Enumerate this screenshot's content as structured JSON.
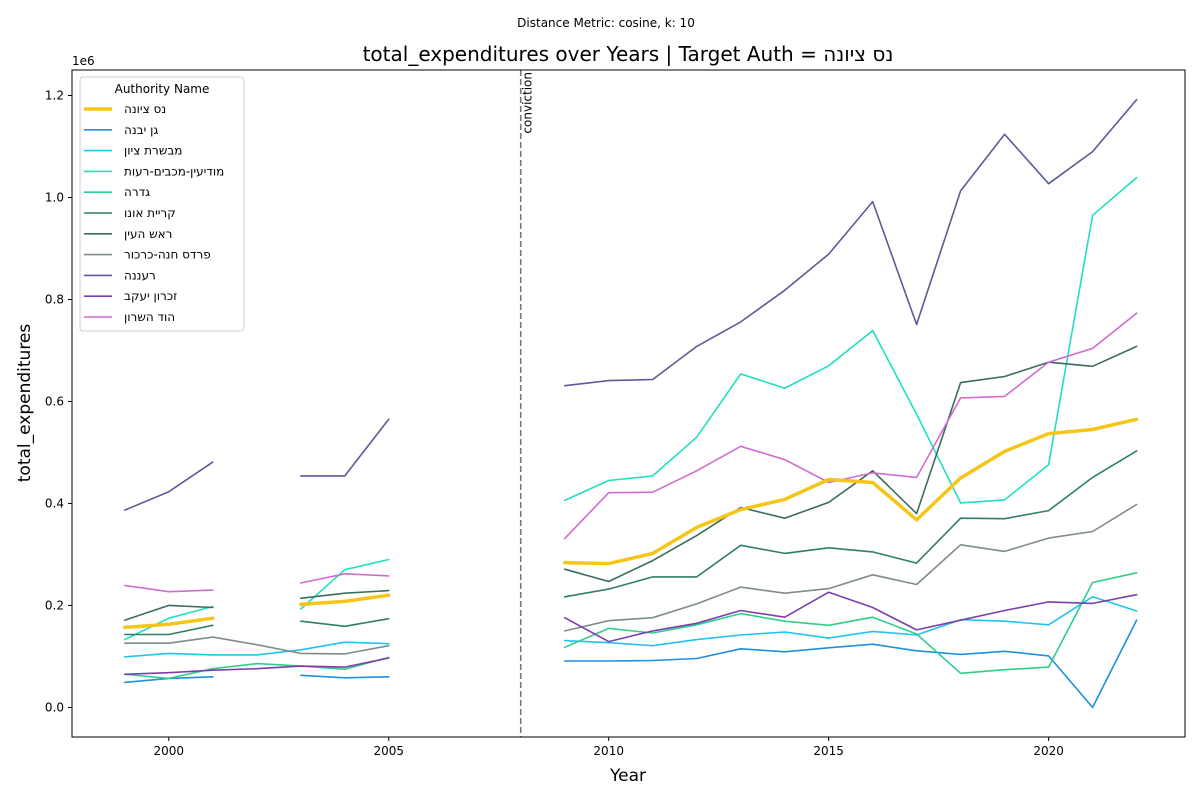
{
  "chart_data": {
    "type": "line",
    "suptitle": "Distance Metric: cosine, k: 10",
    "title": "total_expenditures over Years | Target Auth = נס ציונה",
    "xlabel": "Year",
    "ylabel": "total_expenditures",
    "offset_text": "1e6",
    "xlim": [
      1997.8,
      2023.1
    ],
    "ylim": [
      -58000,
      1250000
    ],
    "xticks": [
      2000,
      2005,
      2010,
      2015,
      2020
    ],
    "yticks": [
      0,
      200000,
      400000,
      600000,
      800000,
      1000000,
      1200000
    ],
    "ytick_labels": [
      "0.0",
      "0.2",
      "0.4",
      "0.6",
      "0.8",
      "1.0",
      "1.2"
    ],
    "vline": {
      "x": 2008,
      "label": "conviction",
      "color": "#777777"
    },
    "legend": {
      "title": "Authority Name",
      "position": "top-left"
    },
    "series": [
      {
        "name": "נס ציונה",
        "color": "#f5c518",
        "target": true,
        "points": [
          [
            1999,
            157000
          ],
          [
            2000,
            163000
          ],
          [
            2001,
            175000
          ],
          [
            2003,
            202000
          ],
          [
            2004,
            208000
          ],
          [
            2005,
            220000
          ],
          [
            2009,
            284000
          ],
          [
            2010,
            282000
          ],
          [
            2011,
            302000
          ],
          [
            2012,
            353000
          ],
          [
            2013,
            388000
          ],
          [
            2014,
            408000
          ],
          [
            2015,
            447000
          ],
          [
            2016,
            441000
          ],
          [
            2017,
            368000
          ],
          [
            2018,
            450000
          ],
          [
            2019,
            502000
          ],
          [
            2020,
            537000
          ],
          [
            2021,
            545000
          ],
          [
            2022,
            565000
          ]
        ]
      },
      {
        "name": "גן יבנה",
        "color": "#1f8fe0",
        "points": [
          [
            1999,
            49000
          ],
          [
            2000,
            57000
          ],
          [
            2001,
            60000
          ],
          [
            2003,
            63000
          ],
          [
            2004,
            58000
          ],
          [
            2005,
            60000
          ],
          [
            2009,
            91000
          ],
          [
            2010,
            91000
          ],
          [
            2011,
            92000
          ],
          [
            2012,
            96000
          ],
          [
            2013,
            115000
          ],
          [
            2014,
            109000
          ],
          [
            2015,
            117000
          ],
          [
            2016,
            124000
          ],
          [
            2017,
            111000
          ],
          [
            2018,
            104000
          ],
          [
            2019,
            110000
          ],
          [
            2020,
            101000
          ],
          [
            2021,
            0
          ],
          [
            2022,
            171000
          ]
        ]
      },
      {
        "name": "מבשרת ציון",
        "color": "#22c3ef",
        "points": [
          [
            1999,
            99000
          ],
          [
            2000,
            106000
          ],
          [
            2001,
            103000
          ],
          [
            2002,
            103000
          ],
          [
            2003,
            113000
          ],
          [
            2004,
            128000
          ],
          [
            2005,
            125000
          ],
          [
            2009,
            131000
          ],
          [
            2010,
            127000
          ],
          [
            2011,
            121000
          ],
          [
            2012,
            133000
          ],
          [
            2013,
            142000
          ],
          [
            2014,
            148000
          ],
          [
            2015,
            136000
          ],
          [
            2016,
            149000
          ],
          [
            2017,
            142000
          ],
          [
            2018,
            172000
          ],
          [
            2019,
            169000
          ],
          [
            2020,
            162000
          ],
          [
            2021,
            217000
          ],
          [
            2022,
            189000
          ]
        ]
      },
      {
        "name": "מודיעין-מכבים-רעות",
        "color": "#1fe0c0",
        "points": [
          [
            1999,
            133000
          ],
          [
            2000,
            175000
          ],
          [
            2001,
            198000
          ],
          [
            2003,
            193000
          ],
          [
            2004,
            270000
          ],
          [
            2005,
            290000
          ],
          [
            2009,
            406000
          ],
          [
            2010,
            445000
          ],
          [
            2011,
            454000
          ],
          [
            2012,
            530000
          ],
          [
            2013,
            654000
          ],
          [
            2014,
            626000
          ],
          [
            2015,
            670000
          ],
          [
            2016,
            739000
          ],
          [
            2017,
            575000
          ],
          [
            2018,
            401000
          ],
          [
            2019,
            407000
          ],
          [
            2020,
            476000
          ],
          [
            2021,
            965000
          ],
          [
            2022,
            1039000
          ]
        ]
      },
      {
        "name": "גדרה",
        "color": "#2ecf8a",
        "points": [
          [
            1999,
            65000
          ],
          [
            2000,
            57000
          ],
          [
            2001,
            76000
          ],
          [
            2002,
            86000
          ],
          [
            2003,
            81000
          ],
          [
            2004,
            75000
          ],
          [
            2005,
            98000
          ],
          [
            2009,
            118000
          ],
          [
            2010,
            155000
          ],
          [
            2011,
            146000
          ],
          [
            2012,
            162000
          ],
          [
            2013,
            184000
          ],
          [
            2014,
            169000
          ],
          [
            2015,
            161000
          ],
          [
            2016,
            177000
          ],
          [
            2017,
            144000
          ],
          [
            2018,
            67000
          ],
          [
            2019,
            74000
          ],
          [
            2020,
            79000
          ],
          [
            2021,
            245000
          ],
          [
            2022,
            264000
          ]
        ]
      },
      {
        "name": "קריית אונו",
        "color": "#2f7f68",
        "points": [
          [
            1999,
            143000
          ],
          [
            2000,
            143000
          ],
          [
            2001,
            161000
          ],
          [
            2003,
            169000
          ],
          [
            2004,
            159000
          ],
          [
            2005,
            174000
          ],
          [
            2009,
            217000
          ],
          [
            2010,
            232000
          ],
          [
            2011,
            256000
          ],
          [
            2012,
            256000
          ],
          [
            2013,
            318000
          ],
          [
            2014,
            302000
          ],
          [
            2015,
            313000
          ],
          [
            2016,
            305000
          ],
          [
            2017,
            283000
          ],
          [
            2018,
            371000
          ],
          [
            2019,
            370000
          ],
          [
            2020,
            386000
          ],
          [
            2021,
            451000
          ],
          [
            2022,
            503000
          ]
        ]
      },
      {
        "name": "ראש העין",
        "color": "#3d6c5a",
        "points": [
          [
            1999,
            171000
          ],
          [
            2000,
            200000
          ],
          [
            2001,
            196000
          ],
          [
            2003,
            214000
          ],
          [
            2004,
            224000
          ],
          [
            2005,
            229000
          ],
          [
            2009,
            271000
          ],
          [
            2010,
            247000
          ],
          [
            2011,
            288000
          ],
          [
            2012,
            337000
          ],
          [
            2013,
            392000
          ],
          [
            2014,
            371000
          ],
          [
            2015,
            402000
          ],
          [
            2016,
            464000
          ],
          [
            2017,
            380000
          ],
          [
            2018,
            637000
          ],
          [
            2019,
            649000
          ],
          [
            2020,
            677000
          ],
          [
            2021,
            669000
          ],
          [
            2022,
            708000
          ]
        ]
      },
      {
        "name": "פרדס חנה-כרכור",
        "color": "#7f8c88",
        "points": [
          [
            1999,
            126000
          ],
          [
            2000,
            126000
          ],
          [
            2001,
            138000
          ],
          [
            2002,
            123000
          ],
          [
            2003,
            106000
          ],
          [
            2004,
            105000
          ],
          [
            2005,
            121000
          ],
          [
            2009,
            150000
          ],
          [
            2010,
            170000
          ],
          [
            2011,
            176000
          ],
          [
            2012,
            203000
          ],
          [
            2013,
            236000
          ],
          [
            2014,
            224000
          ],
          [
            2015,
            233000
          ],
          [
            2016,
            260000
          ],
          [
            2017,
            241000
          ],
          [
            2018,
            319000
          ],
          [
            2019,
            306000
          ],
          [
            2020,
            332000
          ],
          [
            2021,
            345000
          ],
          [
            2022,
            398000
          ]
        ]
      },
      {
        "name": "רעננה",
        "color": "#5b5b9a",
        "points": [
          [
            1999,
            387000
          ],
          [
            2000,
            423000
          ],
          [
            2001,
            481000
          ],
          [
            2003,
            454000
          ],
          [
            2004,
            454000
          ],
          [
            2005,
            565000
          ],
          [
            2009,
            631000
          ],
          [
            2010,
            641000
          ],
          [
            2011,
            643000
          ],
          [
            2012,
            708000
          ],
          [
            2013,
            756000
          ],
          [
            2014,
            818000
          ],
          [
            2015,
            889000
          ],
          [
            2016,
            992000
          ],
          [
            2017,
            751000
          ],
          [
            2018,
            1013000
          ],
          [
            2019,
            1124000
          ],
          [
            2020,
            1027000
          ],
          [
            2021,
            1090000
          ],
          [
            2022,
            1192000
          ]
        ]
      },
      {
        "name": "זכרון יעקב",
        "color": "#7b3fb0",
        "points": [
          [
            1999,
            65000
          ],
          [
            2000,
            68000
          ],
          [
            2001,
            73000
          ],
          [
            2002,
            76000
          ],
          [
            2003,
            81000
          ],
          [
            2004,
            79000
          ],
          [
            2005,
            97000
          ],
          [
            2009,
            176000
          ],
          [
            2010,
            129000
          ],
          [
            2011,
            150000
          ],
          [
            2012,
            165000
          ],
          [
            2013,
            190000
          ],
          [
            2014,
            177000
          ],
          [
            2015,
            226000
          ],
          [
            2016,
            196000
          ],
          [
            2017,
            152000
          ],
          [
            2018,
            171000
          ],
          [
            2019,
            190000
          ],
          [
            2020,
            207000
          ],
          [
            2021,
            204000
          ],
          [
            2022,
            221000
          ]
        ]
      },
      {
        "name": "הוד השרון",
        "color": "#d06cd0",
        "points": [
          [
            1999,
            239000
          ],
          [
            2000,
            227000
          ],
          [
            2001,
            230000
          ],
          [
            2003,
            244000
          ],
          [
            2004,
            262000
          ],
          [
            2005,
            258000
          ],
          [
            2009,
            331000
          ],
          [
            2010,
            421000
          ],
          [
            2011,
            422000
          ],
          [
            2012,
            464000
          ],
          [
            2013,
            512000
          ],
          [
            2014,
            486000
          ],
          [
            2015,
            441000
          ],
          [
            2016,
            460000
          ],
          [
            2017,
            451000
          ],
          [
            2018,
            607000
          ],
          [
            2019,
            610000
          ],
          [
            2020,
            677000
          ],
          [
            2021,
            704000
          ],
          [
            2022,
            773000
          ]
        ]
      }
    ]
  }
}
